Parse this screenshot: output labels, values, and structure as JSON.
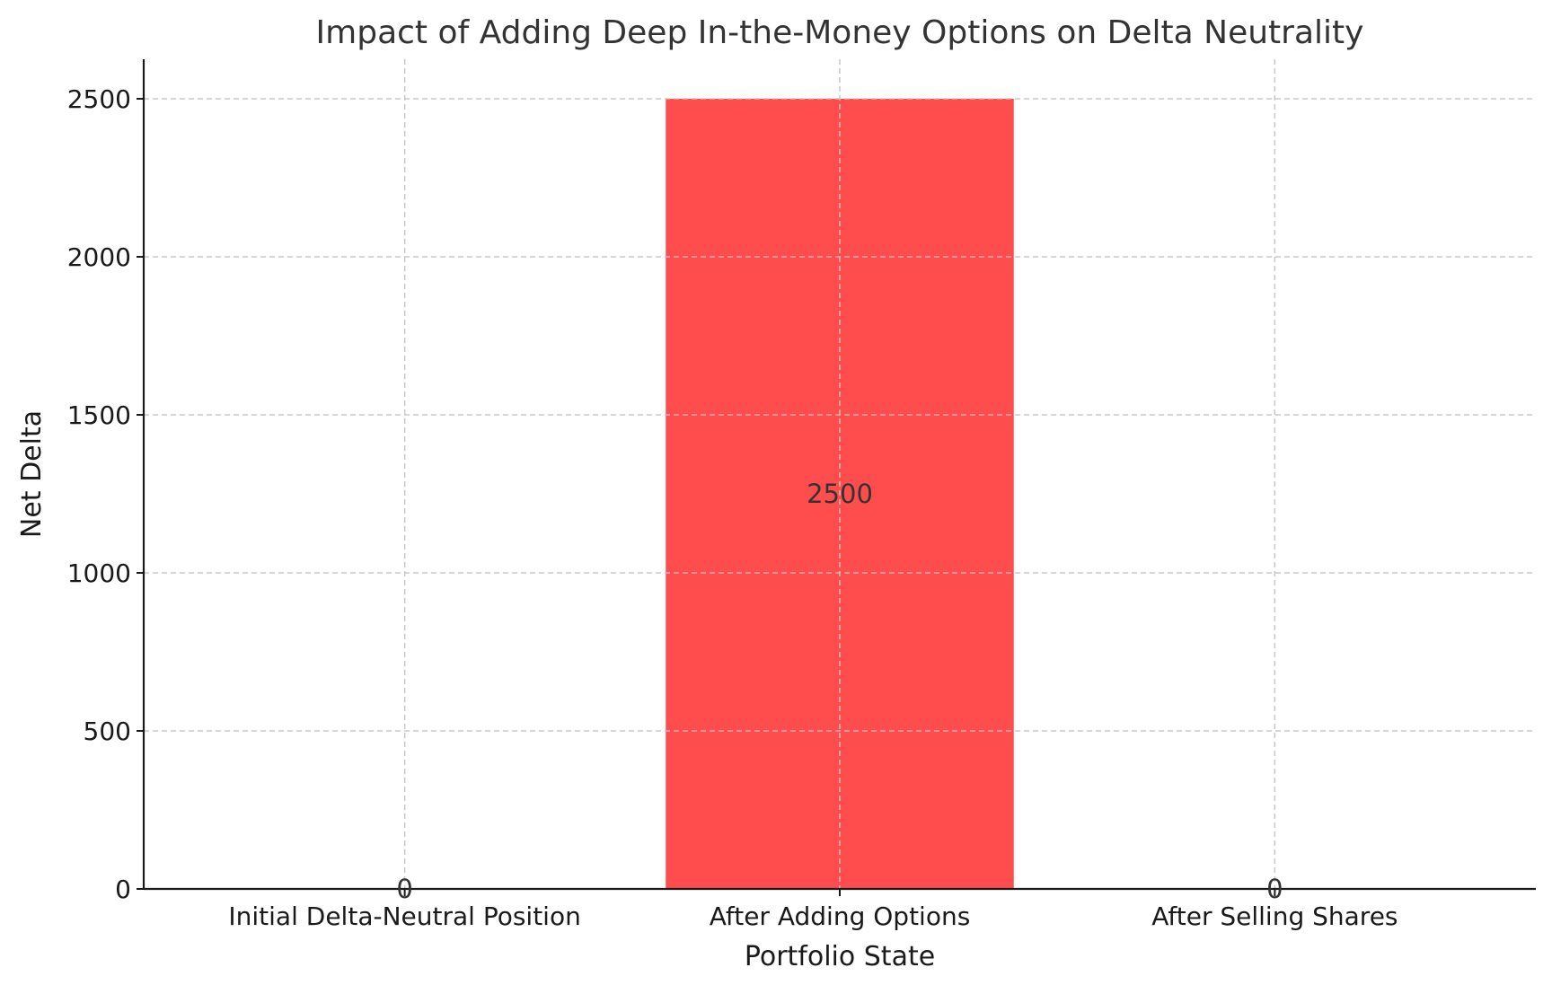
{
  "chart_data": {
    "type": "bar",
    "title": "Impact of Adding Deep In-the-Money Options on Delta Neutrality",
    "xlabel": "Portfolio State",
    "ylabel": "Net Delta",
    "categories": [
      "Initial Delta-Neutral Position",
      "After Adding Options",
      "After Selling Shares"
    ],
    "values": [
      0,
      2500,
      0
    ],
    "data_labels": [
      "0",
      "2500",
      "0"
    ],
    "ylim": [
      0,
      2625
    ],
    "yticks": [
      0,
      500,
      1000,
      1500,
      2000,
      2500
    ],
    "ytick_labels": [
      "0",
      "500",
      "1000",
      "1500",
      "2000",
      "2500"
    ],
    "grid": true,
    "bar_color": "#ff4d4d",
    "grid_color": "#c8c8c8",
    "axis_color": "#1a1a1a"
  }
}
